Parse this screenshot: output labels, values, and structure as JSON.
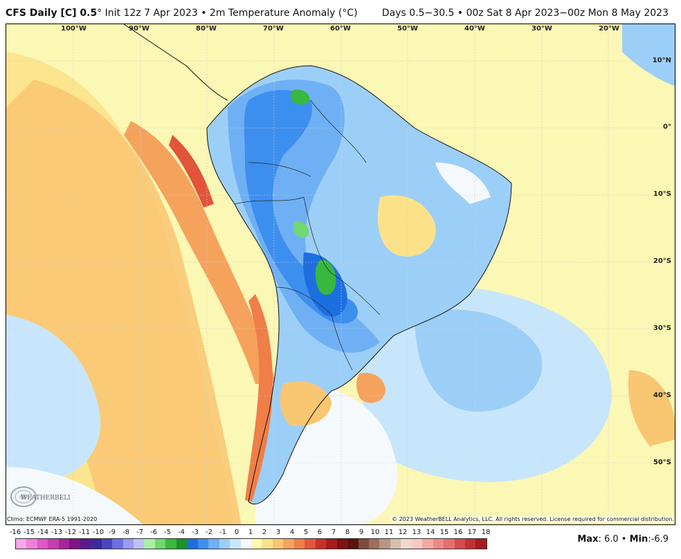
{
  "header": {
    "model": "CFS Daily [C] 0.5",
    "deg": "°",
    "init": " Init 12z 7 Apr 2023 • 2m Temperature Anomaly (°C)",
    "days": "Days 0.5−30.5 • 00z Sat 8 Apr 2023−00z Mon 8 May 2023"
  },
  "map": {
    "lon_labels": [
      "100°W",
      "90°W",
      "80°W",
      "70°W",
      "60°W",
      "50°W",
      "40°W",
      "30°W",
      "20°W"
    ],
    "lat_labels": [
      "10°N",
      "0°",
      "10°S",
      "20°S",
      "30°S",
      "40°S",
      "50°S"
    ]
  },
  "footer": {
    "climo": "Climo: ECMWF ERA-5 1991-2020",
    "copyright": "© 2023 WeatherBELL Analytics, LLC. All rights reserved. License required for commercial distribution.",
    "max_label": "Max",
    "max_value": ": 6.0",
    "sep": " • ",
    "min_label": "Min",
    "min_value": ":-6.9"
  },
  "colorbar": {
    "ticks": [
      "-16",
      "-15",
      "-14",
      "-13",
      "-12",
      "-11",
      "-10",
      "-9",
      "-8",
      "-7",
      "-6",
      "-5",
      "-4",
      "-3",
      "-2",
      "-1",
      "0",
      "1",
      "2",
      "3",
      "4",
      "5",
      "6",
      "7",
      "8",
      "9",
      "10",
      "11",
      "12",
      "13",
      "14",
      "15",
      "16",
      "17",
      "18"
    ],
    "colors": [
      "#f7a6e8",
      "#ee7edb",
      "#e055c8",
      "#c93cb0",
      "#a8249a",
      "#7e1585",
      "#5a1a8a",
      "#3b2a9e",
      "#4a44c0",
      "#6f6ee0",
      "#9a9cf0",
      "#bdbff6",
      "#a8f0a4",
      "#6fd870",
      "#38b83f",
      "#1a9327",
      "#1d6fe0",
      "#3d8fef",
      "#6fb0f5",
      "#9ccff8",
      "#c8e6fb",
      "#f6f9fb",
      "#fdf9b0",
      "#fbe28a",
      "#f9c672",
      "#f5a35c",
      "#ef7e48",
      "#e2553a",
      "#c93028",
      "#a81c1a",
      "#7d1210",
      "#5a120e",
      "#7c4a3a",
      "#9c6d5a",
      "#b99583",
      "#d5bfae",
      "#eed8cf",
      "#f7c9c6",
      "#f4a8a6",
      "#ee8888",
      "#e66e6e",
      "#d94b4b",
      "#c33030",
      "#a81c1c"
    ]
  },
  "brand": {
    "logo_text": "WEATHERBELL"
  }
}
